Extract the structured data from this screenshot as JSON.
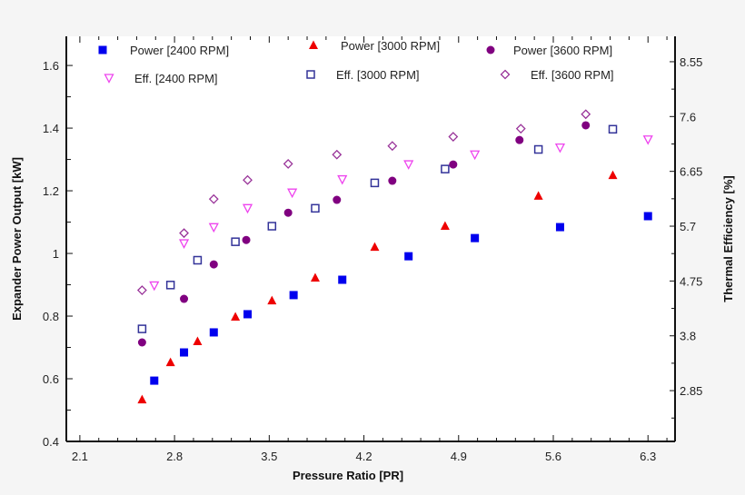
{
  "chart_data": {
    "type": "scatter",
    "xlabel": "Pressure Ratio [PR]",
    "ylabel": "Expander Power Output [kW]",
    "y2label": "Thermal Efficiency [%]",
    "xlim": [
      2.0,
      6.5
    ],
    "ylim": [
      0.4,
      1.693
    ],
    "y2lim": [
      1.97,
      8.99
    ],
    "xticks": [
      2.1,
      2.8,
      3.5,
      4.2,
      4.9,
      5.6,
      6.3
    ],
    "yticks": [
      0.4,
      0.6,
      0.8,
      1,
      1.2,
      1.4,
      1.6
    ],
    "y2ticks": [
      2.85,
      3.8,
      4.75,
      5.7,
      6.65,
      7.6,
      8.55
    ],
    "grid": false,
    "legend_placement": "top",
    "series": [
      {
        "name": "Power [2400 RPM]",
        "axis": "left",
        "marker": "filled-square",
        "color": "#0000ee",
        "x": [
          2.65,
          2.87,
          3.09,
          3.34,
          3.68,
          4.04,
          4.53,
          5.02,
          5.65,
          6.3
        ],
        "y": [
          0.594,
          0.684,
          0.748,
          0.806,
          0.867,
          0.916,
          0.991,
          1.049,
          1.084,
          1.119
        ]
      },
      {
        "name": "Power [3000 RPM]",
        "axis": "left",
        "marker": "filled-triangle-up",
        "color": "#ee0000",
        "x": [
          2.56,
          2.77,
          2.97,
          3.25,
          3.52,
          3.84,
          4.28,
          4.8,
          5.49,
          6.04
        ],
        "y": [
          0.533,
          0.652,
          0.719,
          0.797,
          0.849,
          0.922,
          1.02,
          1.087,
          1.183,
          1.249
        ]
      },
      {
        "name": "Power [3600 RPM]",
        "axis": "left",
        "marker": "filled-circle",
        "color": "#800080",
        "x": [
          2.56,
          2.87,
          3.09,
          3.33,
          3.64,
          4.0,
          4.41,
          4.86,
          5.35,
          5.84
        ],
        "y": [
          0.716,
          0.855,
          0.965,
          1.043,
          1.13,
          1.171,
          1.232,
          1.284,
          1.362,
          1.409
        ]
      },
      {
        "name": "Eff. [2400 RPM]",
        "axis": "right",
        "marker": "open-triangle-down",
        "color": "#ee44ee",
        "x": [
          2.65,
          2.87,
          3.09,
          3.34,
          3.67,
          4.04,
          4.53,
          5.02,
          5.65,
          6.3
        ],
        "y": [
          4.67,
          5.4,
          5.68,
          6.01,
          6.28,
          6.51,
          6.77,
          6.94,
          7.06,
          7.2
        ]
      },
      {
        "name": "Eff. [3000 RPM]",
        "axis": "right",
        "marker": "open-square",
        "color": "#333399",
        "x": [
          2.56,
          2.77,
          2.97,
          3.25,
          3.52,
          3.84,
          4.28,
          4.8,
          5.49,
          6.04
        ],
        "y": [
          3.92,
          4.68,
          5.11,
          5.43,
          5.7,
          6.01,
          6.45,
          6.69,
          7.03,
          7.38
        ]
      },
      {
        "name": "Eff. [3600 RPM]",
        "axis": "right",
        "marker": "open-diamond",
        "color": "#993399",
        "x": [
          2.56,
          2.87,
          3.09,
          3.34,
          3.64,
          4.0,
          4.41,
          4.86,
          5.36,
          5.84
        ],
        "y": [
          4.59,
          5.58,
          6.17,
          6.5,
          6.78,
          6.94,
          7.09,
          7.25,
          7.39,
          7.64
        ]
      }
    ]
  }
}
